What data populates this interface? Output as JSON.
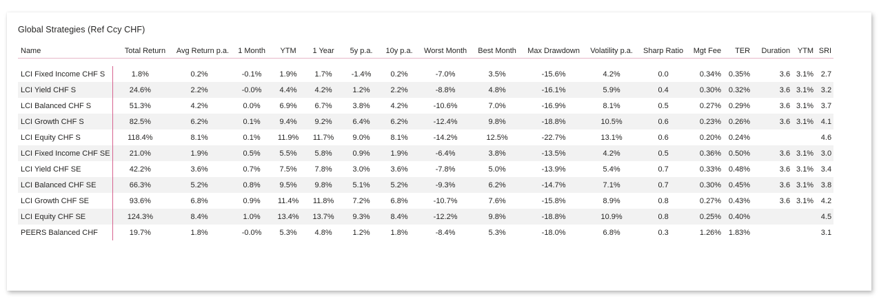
{
  "title": "Global Strategies (Ref Ccy CHF)",
  "columns": [
    "Name",
    "Total Return",
    "Avg Return p.a.",
    "1 Month",
    "YTM",
    "1 Year",
    "5y p.a.",
    "10y p.a.",
    "Worst Month",
    "Best Month",
    "Max Drawdown",
    "Volatility p.a.",
    "Sharp Ratio",
    "Mgt Fee",
    "TER",
    "Duration",
    "YTM",
    "SRI"
  ],
  "rows": [
    [
      "LCI Fixed Income CHF S",
      "1.8%",
      "0.2%",
      "-0.1%",
      "1.9%",
      "1.7%",
      "-1.4%",
      "0.2%",
      "-7.0%",
      "3.5%",
      "-15.6%",
      "4.2%",
      "0.0",
      "0.34%",
      "0.35%",
      "3.6",
      "3.1%",
      "2.7"
    ],
    [
      "LCI Yield CHF S",
      "24.6%",
      "2.2%",
      "-0.0%",
      "4.4%",
      "4.2%",
      "1.2%",
      "2.2%",
      "-8.8%",
      "4.8%",
      "-16.1%",
      "5.9%",
      "0.4",
      "0.30%",
      "0.32%",
      "3.6",
      "3.1%",
      "3.2"
    ],
    [
      "LCI Balanced CHF S",
      "51.3%",
      "4.2%",
      "0.0%",
      "6.9%",
      "6.7%",
      "3.8%",
      "4.2%",
      "-10.6%",
      "7.0%",
      "-16.9%",
      "8.1%",
      "0.5",
      "0.27%",
      "0.29%",
      "3.6",
      "3.1%",
      "3.7"
    ],
    [
      "LCI Growth CHF S",
      "82.5%",
      "6.2%",
      "0.1%",
      "9.4%",
      "9.2%",
      "6.4%",
      "6.2%",
      "-12.4%",
      "9.8%",
      "-18.8%",
      "10.5%",
      "0.6",
      "0.23%",
      "0.26%",
      "3.6",
      "3.1%",
      "4.1"
    ],
    [
      "LCI Equity CHF S",
      "118.4%",
      "8.1%",
      "0.1%",
      "11.9%",
      "11.7%",
      "9.0%",
      "8.1%",
      "-14.2%",
      "12.5%",
      "-22.7%",
      "13.1%",
      "0.6",
      "0.20%",
      "0.24%",
      "",
      "",
      "4.6"
    ],
    [
      "LCI Fixed Income CHF SE",
      "21.0%",
      "1.9%",
      "0.5%",
      "5.5%",
      "5.8%",
      "0.9%",
      "1.9%",
      "-6.4%",
      "3.8%",
      "-13.5%",
      "4.2%",
      "0.5",
      "0.36%",
      "0.50%",
      "3.6",
      "3.1%",
      "3.0"
    ],
    [
      "LCI Yield CHF SE",
      "42.2%",
      "3.6%",
      "0.7%",
      "7.5%",
      "7.8%",
      "3.0%",
      "3.6%",
      "-7.8%",
      "5.0%",
      "-13.9%",
      "5.4%",
      "0.7",
      "0.33%",
      "0.48%",
      "3.6",
      "3.1%",
      "3.4"
    ],
    [
      "LCI Balanced CHF SE",
      "66.3%",
      "5.2%",
      "0.8%",
      "9.5%",
      "9.8%",
      "5.1%",
      "5.2%",
      "-9.3%",
      "6.2%",
      "-14.7%",
      "7.1%",
      "0.7",
      "0.30%",
      "0.45%",
      "3.6",
      "3.1%",
      "3.8"
    ],
    [
      "LCI Growth CHF SE",
      "93.6%",
      "6.8%",
      "0.9%",
      "11.4%",
      "11.8%",
      "7.2%",
      "6.8%",
      "-10.7%",
      "7.6%",
      "-15.8%",
      "8.9%",
      "0.8",
      "0.27%",
      "0.43%",
      "3.6",
      "3.1%",
      "4.2"
    ],
    [
      "LCI Equity CHF SE",
      "124.3%",
      "8.4%",
      "1.0%",
      "13.4%",
      "13.7%",
      "9.3%",
      "8.4%",
      "-12.2%",
      "9.8%",
      "-18.8%",
      "10.9%",
      "0.8",
      "0.25%",
      "0.40%",
      "",
      "",
      "4.5"
    ],
    [
      "PEERS Balanced CHF",
      "19.7%",
      "1.8%",
      "-0.0%",
      "5.3%",
      "4.8%",
      "1.2%",
      "1.8%",
      "-8.4%",
      "5.3%",
      "-18.0%",
      "6.8%",
      "0.3",
      "1.26%",
      "1.83%",
      "",
      "",
      "3.1"
    ]
  ],
  "colors": {
    "accent": "#d6628f",
    "header_rule": "#e7b6c8",
    "stripe": "#f2f2f2",
    "text": "#252423"
  }
}
